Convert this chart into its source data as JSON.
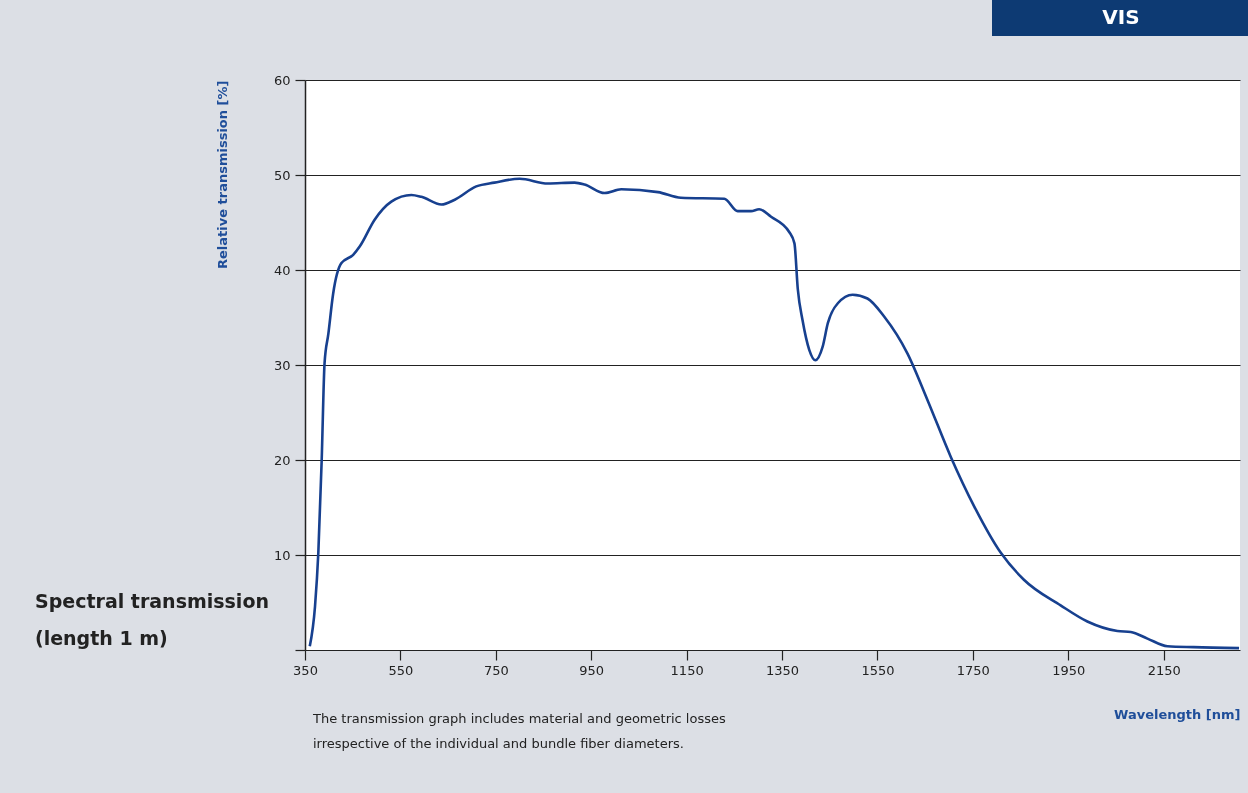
{
  "chart_data": {
    "type": "line",
    "title": "Spectral transmission",
    "subtitle": "(length 1 m)",
    "xlabel": "Wavelength [nm]",
    "ylabel": "Relative transmission [%]",
    "annotations": [
      "The transmission graph includes material and geometric losses",
      "irrespective of the individual and bundle fiber diameters.",
      "VIS"
    ],
    "series": [
      {
        "color": "#17408f",
        "x": [
          360,
          371,
          378,
          385,
          391,
          399,
          409,
          426,
          451,
          465,
          496,
          531,
          573,
          594,
          636,
          664,
          709,
          747,
          800,
          859,
          915,
          936,
          978,
          1013,
          1090,
          1138,
          1229,
          1257,
          1285,
          1302,
          1327,
          1365,
          1376,
          1383,
          1393,
          1407,
          1420,
          1435,
          1446,
          1467,
          1498,
          1529,
          1564,
          1613,
          1655,
          1704,
          1753,
          1809,
          1857,
          1934,
          1990,
          2053,
          2081,
          2116,
          2158,
          2213,
          2308
        ],
        "values": [
          0.4,
          4.6,
          10.3,
          20,
          30.2,
          33.3,
          37.5,
          40.7,
          41.6,
          42.5,
          45.3,
          47.2,
          47.9,
          47.7,
          46.9,
          47.4,
          48.8,
          49.2,
          49.6,
          49.1,
          49.2,
          49.0,
          48.1,
          48.5,
          48.2,
          47.6,
          47.5,
          46.2,
          46.2,
          46.4,
          45.6,
          44.0,
          42.8,
          38.0,
          34.7,
          31.6,
          30.5,
          31.9,
          34.4,
          36.5,
          37.4,
          37.0,
          35.1,
          31.2,
          26.3,
          20.3,
          15.1,
          10.2,
          7.4,
          4.7,
          3.0,
          2.0,
          1.9,
          1.2,
          0.4,
          0.3,
          0.2
        ]
      }
    ],
    "xlim": [
      350,
      2310
    ],
    "xticks": [
      350,
      550,
      750,
      950,
      1150,
      1350,
      1550,
      1750,
      1950,
      2150
    ],
    "ylim": [
      0,
      60
    ],
    "yticks": [
      {
        "value": 0,
        "label": null
      },
      10,
      20,
      30,
      40,
      50,
      60
    ],
    "grid": "y",
    "legend": false,
    "marker": "none",
    "line_style": "solid"
  }
}
